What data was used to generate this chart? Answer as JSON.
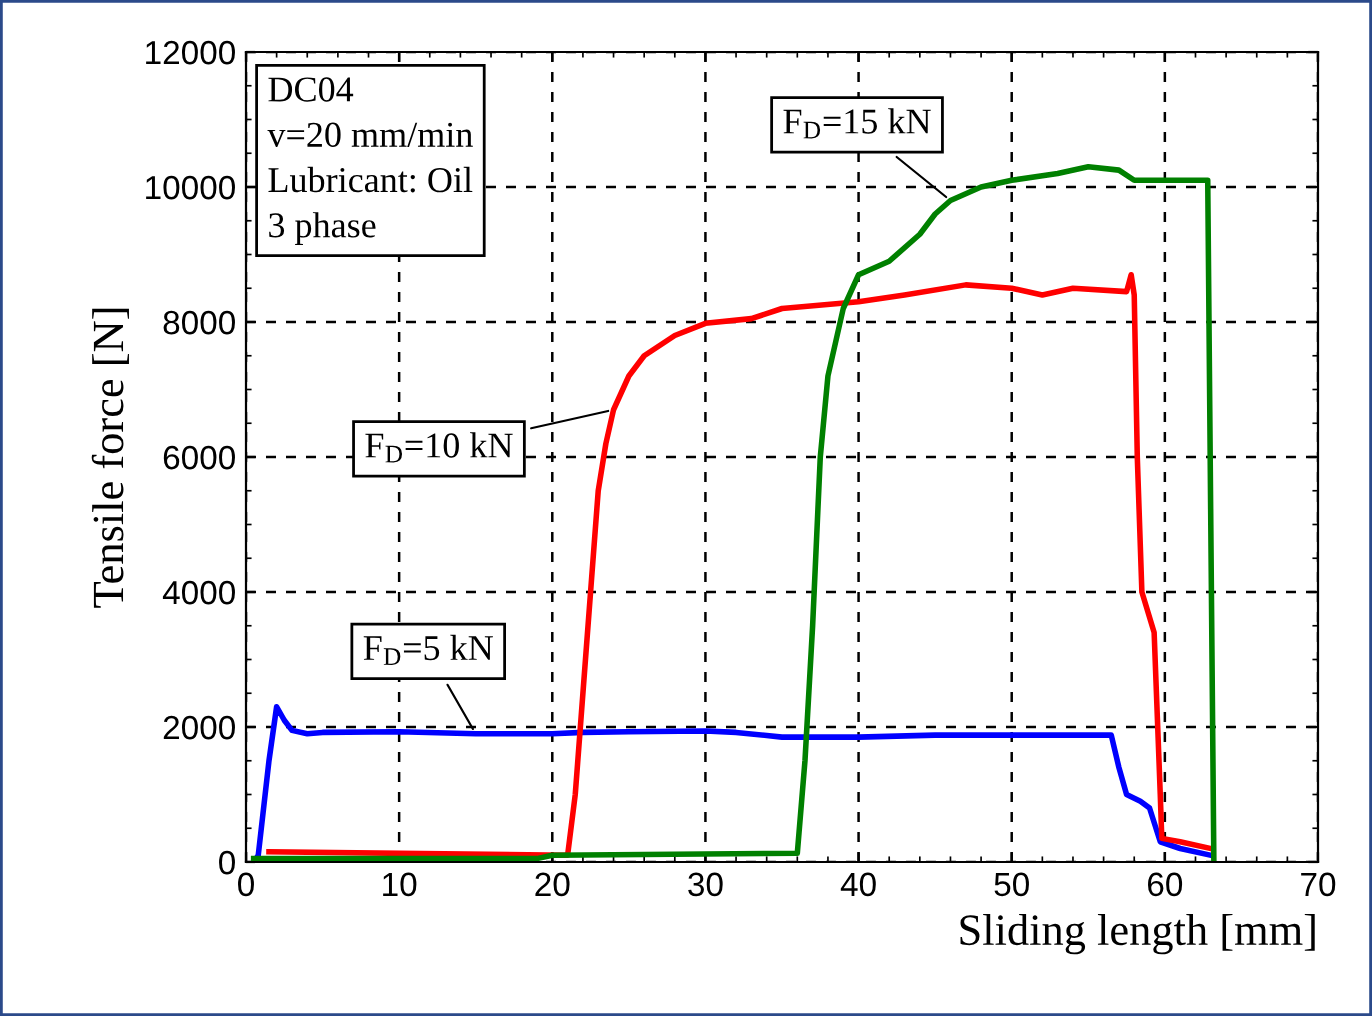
{
  "chart_data": {
    "type": "line",
    "xlabel": "Sliding length [mm]",
    "ylabel": "Tensile force [N]",
    "xlim": [
      0,
      70
    ],
    "ylim": [
      0,
      12000
    ],
    "xticks": [
      0,
      10,
      20,
      30,
      40,
      50,
      60,
      70
    ],
    "yticks": [
      0,
      2000,
      4000,
      6000,
      8000,
      10000,
      12000
    ],
    "grid": true,
    "legend": false,
    "line_style": "solid",
    "marker": "none",
    "annotations": [
      "DC04\nv=20 mm/min\nLubricant: Oil\n3 phase"
    ],
    "series": [
      {
        "name": "F$_{D}$=5 kN",
        "color": "#0000ff",
        "x": [
          0.5,
          0.8,
          1.5,
          2.0,
          2.5,
          3,
          4,
          5,
          10,
          15,
          20,
          22,
          25,
          30,
          32,
          35,
          40,
          45,
          50,
          56.5,
          57,
          57.5,
          58.4,
          59,
          59.7,
          61,
          63
        ],
        "values": [
          0,
          100,
          1500,
          2300,
          2100,
          1950,
          1900,
          1920,
          1930,
          1900,
          1900,
          1920,
          1930,
          1940,
          1920,
          1850,
          1850,
          1880,
          1880,
          1880,
          1400,
          1000,
          900,
          800,
          300,
          200,
          100
        ]
      },
      {
        "name": "F$_{D}$=10 kN",
        "color": "#ff0000",
        "x": [
          1.5,
          21,
          21.5,
          22,
          22.5,
          23,
          23.5,
          24,
          25,
          26,
          28,
          30,
          33,
          35,
          40,
          43,
          47,
          50,
          52,
          54,
          57.5,
          57.8,
          58,
          58.2,
          58.5,
          59.3,
          59.7,
          59.8,
          61,
          63
        ],
        "values": [
          150,
          100,
          1000,
          2500,
          4000,
          5500,
          6200,
          6700,
          7200,
          7500,
          7800,
          7980,
          8050,
          8200,
          8300,
          8400,
          8550,
          8500,
          8400,
          8500,
          8450,
          8700,
          8400,
          6000,
          4000,
          3400,
          1000,
          350,
          300,
          200
        ]
      },
      {
        "name": "F$_{D}$=15 kN",
        "color": "#008000",
        "x": [
          0.5,
          19,
          20,
          36,
          36.5,
          37,
          37.5,
          38,
          39,
          40,
          42,
          44,
          45,
          46,
          48,
          50,
          53,
          55,
          57,
          58,
          62.8,
          63,
          63.2
        ],
        "values": [
          50,
          50,
          100,
          130,
          1500,
          3500,
          6000,
          7200,
          8200,
          8700,
          8900,
          9300,
          9600,
          9800,
          10000,
          10100,
          10200,
          10300,
          10250,
          10100,
          10100,
          5000,
          0
        ]
      }
    ]
  }
}
